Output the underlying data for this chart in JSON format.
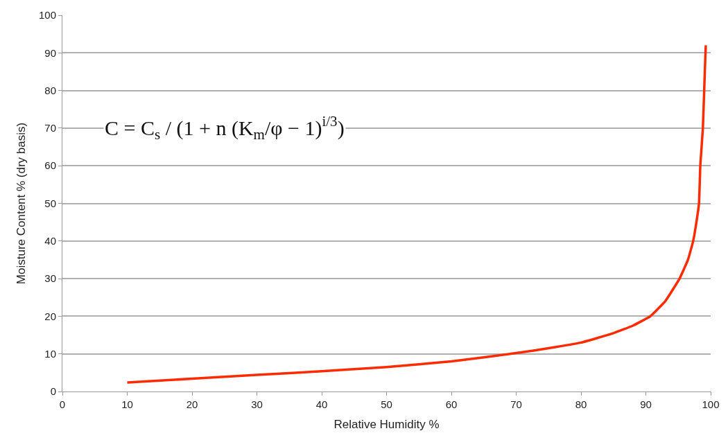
{
  "chart_data": {
    "type": "line",
    "xlabel": "Relative Humidity %",
    "ylabel": "Moisture Content % (dry basis)",
    "x": [
      10,
      20,
      30,
      40,
      50,
      60,
      70,
      75,
      80,
      85,
      88,
      90.7,
      93,
      95.2,
      96.5,
      97.3,
      97.8,
      98.2,
      98.4,
      98.8,
      99.0,
      99.2,
      99.25
    ],
    "series": [
      {
        "color": "#ff2a00",
        "values": [
          2.4,
          3.4,
          4.4,
          5.4,
          6.5,
          8.0,
          10.2,
          11.5,
          13,
          15.5,
          17.5,
          20,
          24,
          30,
          35,
          40,
          45,
          50,
          60,
          70,
          80,
          90,
          92
        ]
      }
    ],
    "xlim": [
      0,
      100
    ],
    "xticks": [
      0,
      10,
      20,
      30,
      40,
      50,
      60,
      70,
      80,
      90,
      100
    ],
    "ylim": [
      0,
      100
    ],
    "yticks": [
      0,
      10,
      20,
      30,
      40,
      50,
      60,
      70,
      80,
      90,
      100
    ],
    "grid": "y",
    "marker": "none",
    "line_style": "solid",
    "annotations": [
      "C = C$_{s}$ / (1 + n (K$_{m}$/φ − 1)$^{i/3}$)"
    ]
  }
}
